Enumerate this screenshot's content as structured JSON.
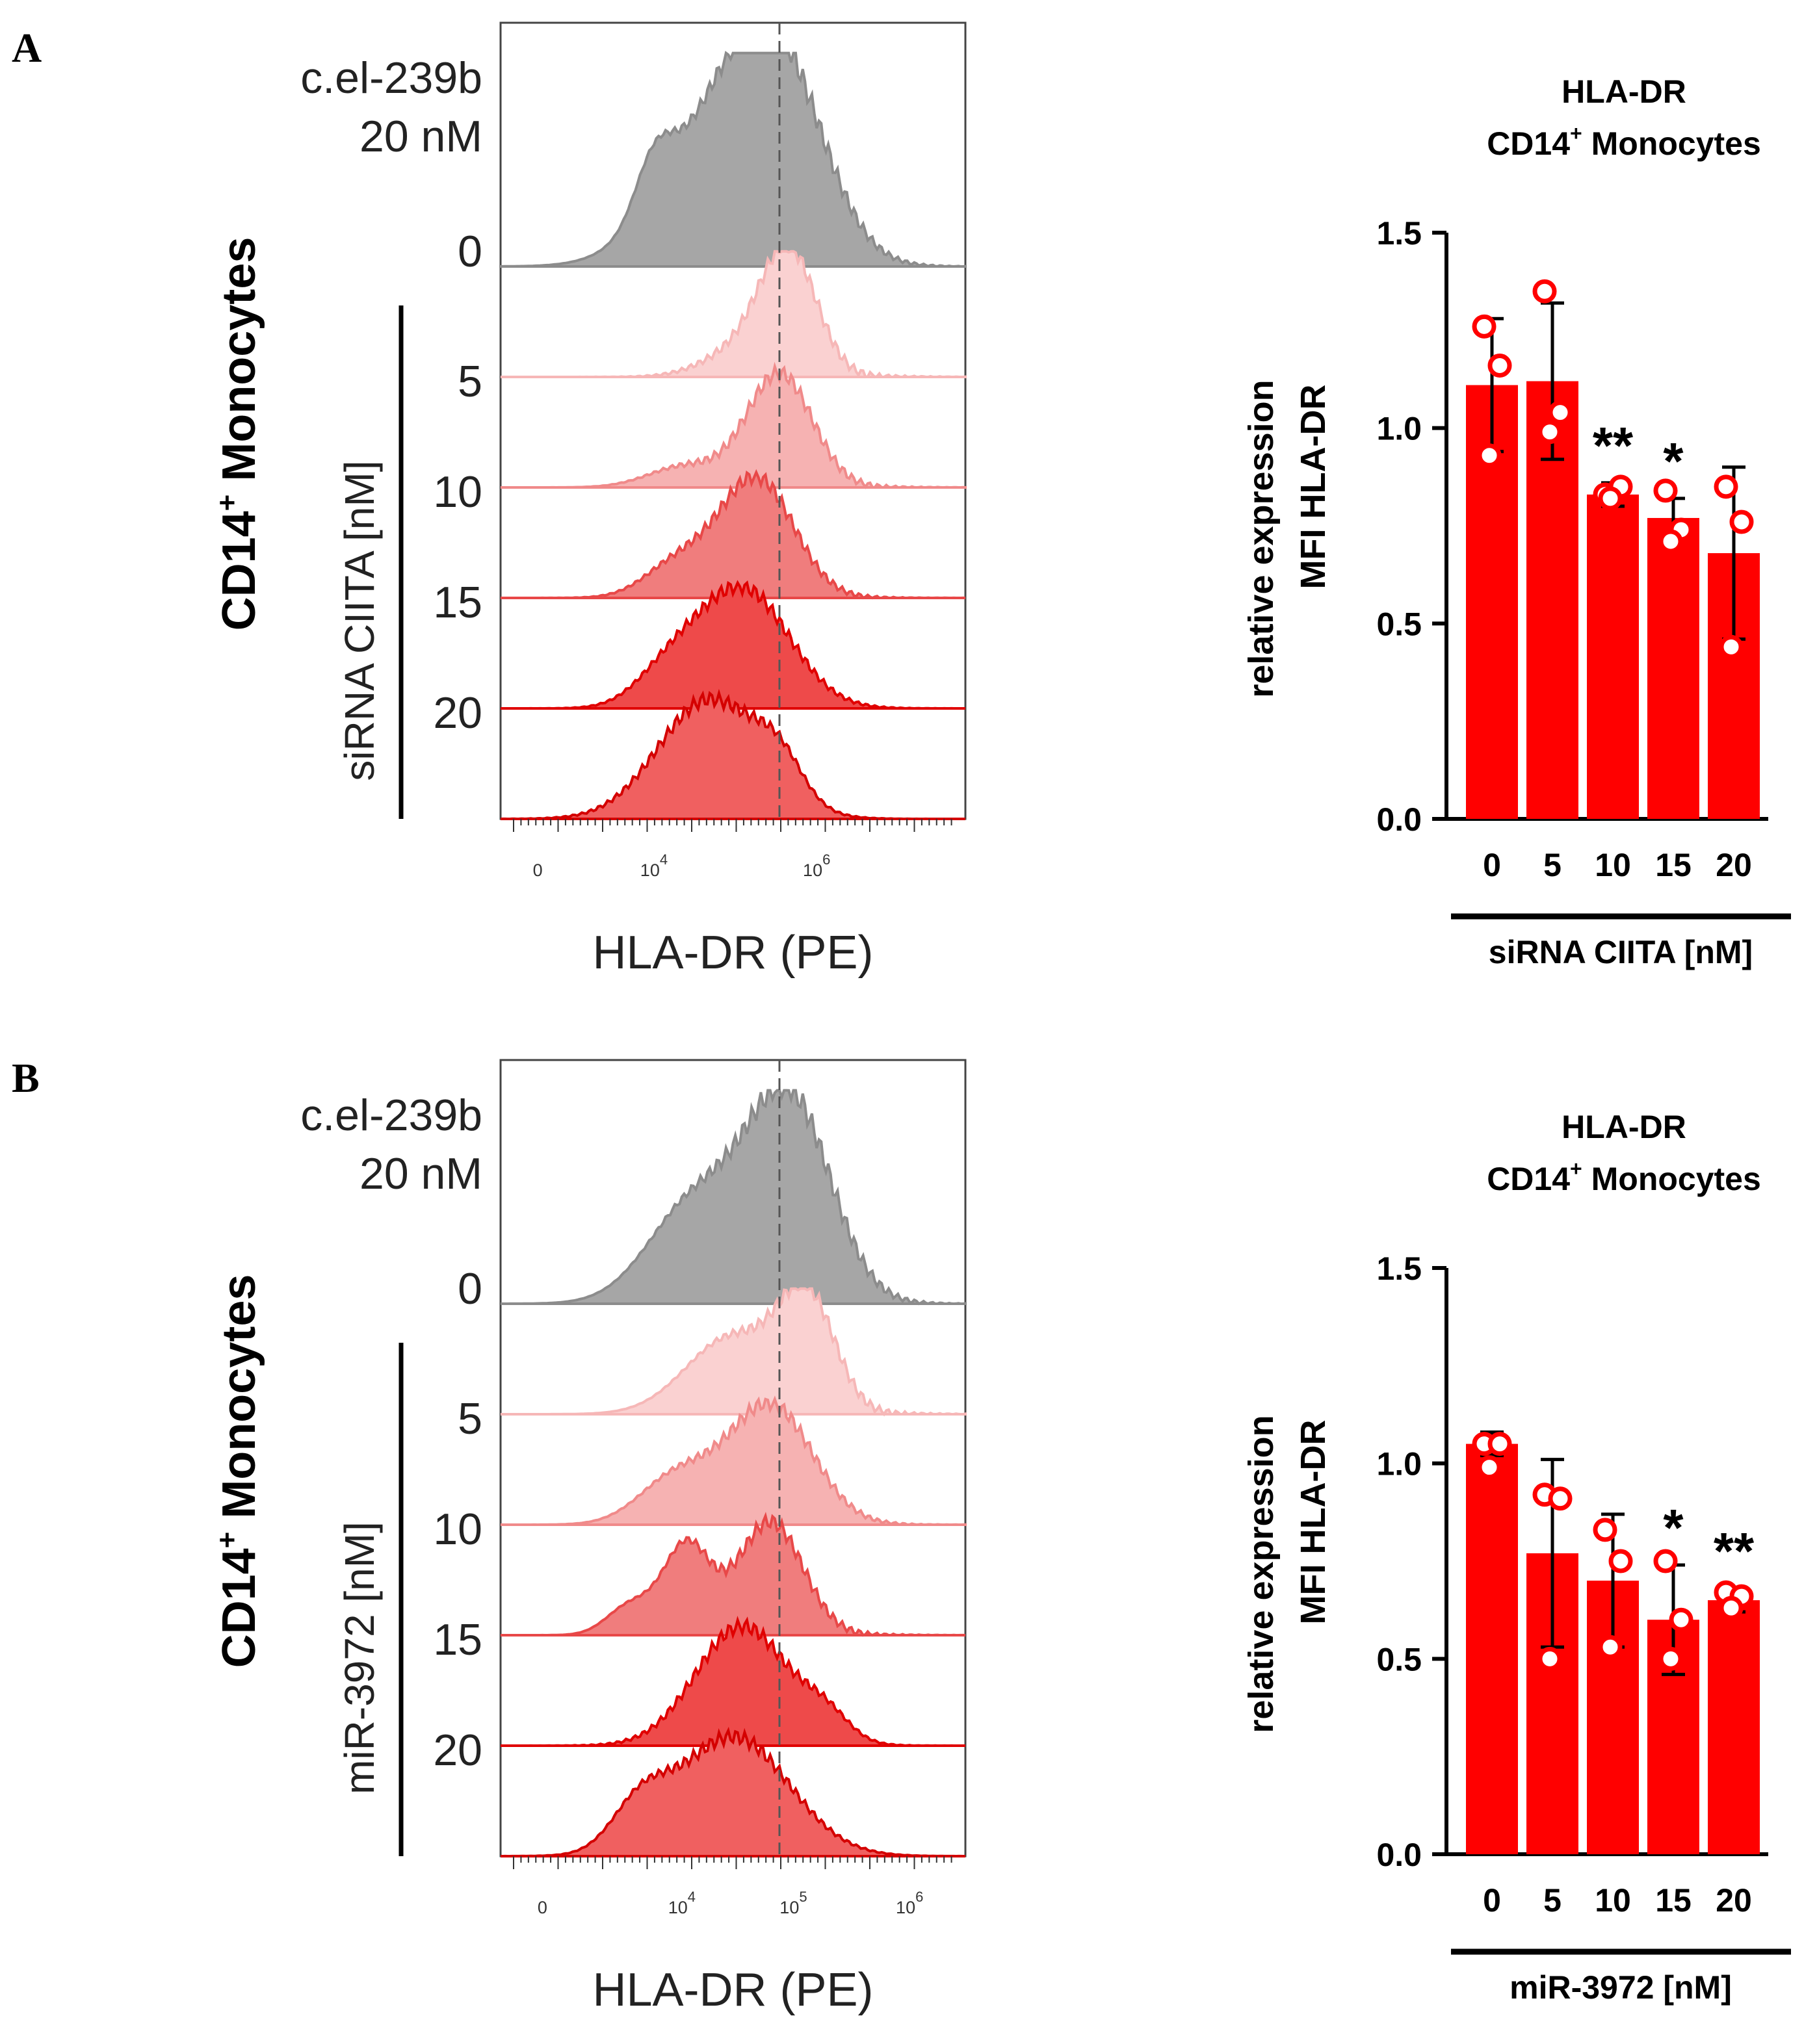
{
  "panels": [
    {
      "letter": "A",
      "facs": {
        "control_label_line1": "c.el-239b",
        "control_label_line2": "20 nM",
        "ylabel_main": "CD14",
        "ylabel_sup": "+",
        "ylabel_rest": " Monocytes",
        "treatment_label": "siRNA CIITA [nM]",
        "concentrations": [
          "0",
          "5",
          "10",
          "15",
          "20"
        ],
        "xtick_labels": [
          {
            "base": "0",
            "exp": "",
            "logpos": 0.08
          },
          {
            "base": "10",
            "exp": "4",
            "logpos": 0.33
          },
          {
            "base": "10",
            "exp": "6",
            "logpos": 0.68
          }
        ],
        "xlabel": "HLA-DR (PE)",
        "dashed_line_logpos": 0.6,
        "histograms": [
          {
            "name": "c.el-239b 20 nM",
            "color": "#8c8c8c",
            "fill": "#a6a6a6",
            "peaks": [
              [
                0.6,
                0.85,
                0.1
              ],
              [
                0.46,
                0.6,
                0.12
              ],
              [
                0.33,
                0.25,
                0.04
              ]
            ]
          },
          {
            "name": "0 nM",
            "color": "#f6b7b7",
            "fill": "#fad1d1",
            "peaks": [
              [
                0.62,
                1.0,
                0.06
              ],
              [
                0.52,
                0.22,
                0.08
              ]
            ]
          },
          {
            "name": "5 nM",
            "color": "#f08a8a",
            "fill": "#f6b2b2",
            "peaks": [
              [
                0.6,
                0.95,
                0.07
              ],
              [
                0.4,
                0.18,
                0.08
              ]
            ]
          },
          {
            "name": "10 nM",
            "color": "#e84848",
            "fill": "#f07d7d",
            "peaks": [
              [
                0.55,
                1.0,
                0.08
              ],
              [
                0.38,
                0.28,
                0.07
              ]
            ]
          },
          {
            "name": "15 nM",
            "color": "#e00000",
            "fill": "#ee4a4a",
            "peaks": [
              [
                0.52,
                1.0,
                0.1
              ],
              [
                0.36,
                0.25,
                0.07
              ]
            ]
          },
          {
            "name": "20 nM",
            "color": "#d40000",
            "fill": "#f06060",
            "peaks": [
              [
                0.45,
                1.0,
                0.11
              ],
              [
                0.6,
                0.3,
                0.05
              ]
            ]
          }
        ]
      },
      "chart_data": {
        "type": "bar",
        "title_line1": "HLA-DR",
        "title_line2_main": "CD14",
        "title_line2_sup": "+",
        "title_line2_rest": " Monocytes",
        "ylabel_line1": "relative expression",
        "ylabel_line2": "MFI HLA-DR",
        "xlabel": "siRNA CIITA [nM]",
        "categories": [
          "0",
          "5",
          "10",
          "15",
          "20"
        ],
        "values": [
          1.11,
          1.12,
          0.83,
          0.77,
          0.68
        ],
        "errors": [
          0.17,
          0.2,
          0.03,
          0.05,
          0.22
        ],
        "points": [
          [
            1.26,
            1.16,
            0.93
          ],
          [
            1.35,
            1.04,
            0.99
          ],
          [
            0.83,
            0.85,
            0.82
          ],
          [
            0.84,
            0.74,
            0.71
          ],
          [
            0.85,
            0.76,
            0.44
          ]
        ],
        "significance": [
          "",
          "",
          "**",
          "*",
          ""
        ],
        "ylim": [
          0,
          1.5
        ],
        "yticks": [
          "0.0",
          "0.5",
          "1.0",
          "1.5"
        ],
        "yticks_values": [
          0,
          0.5,
          1.0,
          1.5
        ]
      }
    },
    {
      "letter": "B",
      "facs": {
        "control_label_line1": "c.el-239b",
        "control_label_line2": "20 nM",
        "ylabel_main": "CD14",
        "ylabel_sup": "+",
        "ylabel_rest": " Monocytes",
        "treatment_label": "miR-3972 [nM]",
        "concentrations": [
          "0",
          "5",
          "10",
          "15",
          "20"
        ],
        "xtick_labels": [
          {
            "base": "0",
            "exp": "",
            "logpos": 0.09
          },
          {
            "base": "10",
            "exp": "4",
            "logpos": 0.39
          },
          {
            "base": "10",
            "exp": "5",
            "logpos": 0.63
          },
          {
            "base": "10",
            "exp": "6",
            "logpos": 0.88
          }
        ],
        "xlabel": "HLA-DR (PE)",
        "dashed_line_logpos": 0.6,
        "histograms": [
          {
            "name": "c.el-239b 20 nM",
            "color": "#8c8c8c",
            "fill": "#a6a6a6",
            "peaks": [
              [
                0.62,
                1.0,
                0.09
              ],
              [
                0.42,
                0.5,
                0.1
              ]
            ]
          },
          {
            "name": "0 nM",
            "color": "#f6b7b7",
            "fill": "#fad1d1",
            "peaks": [
              [
                0.66,
                0.9,
                0.06
              ],
              [
                0.5,
                0.65,
                0.1
              ]
            ]
          },
          {
            "name": "5 nM",
            "color": "#f08a8a",
            "fill": "#f6b2b2",
            "peaks": [
              [
                0.58,
                1.0,
                0.09
              ],
              [
                0.38,
                0.4,
                0.08
              ]
            ]
          },
          {
            "name": "10 nM",
            "color": "#e84848",
            "fill": "#f07d7d",
            "peaks": [
              [
                0.58,
                0.95,
                0.07
              ],
              [
                0.4,
                0.75,
                0.05
              ],
              [
                0.28,
                0.25,
                0.05
              ]
            ]
          },
          {
            "name": "15 nM",
            "color": "#e00000",
            "fill": "#ee4a4a",
            "peaks": [
              [
                0.52,
                1.0,
                0.1
              ],
              [
                0.7,
                0.2,
                0.05
              ]
            ]
          },
          {
            "name": "20 nM",
            "color": "#d40000",
            "fill": "#f06060",
            "peaks": [
              [
                0.5,
                1.0,
                0.12
              ],
              [
                0.3,
                0.35,
                0.06
              ]
            ]
          }
        ]
      },
      "chart_data": {
        "type": "bar",
        "title_line1": "HLA-DR",
        "title_line2_main": "CD14",
        "title_line2_sup": "+",
        "title_line2_rest": " Monocytes",
        "ylabel_line1": "relative expression",
        "ylabel_line2": "MFI HLA-DR",
        "xlabel": "miR-3972 [nM]",
        "categories": [
          "0",
          "5",
          "10",
          "15",
          "20"
        ],
        "values": [
          1.05,
          0.77,
          0.7,
          0.6,
          0.65
        ],
        "errors": [
          0.03,
          0.24,
          0.17,
          0.14,
          0.03
        ],
        "points": [
          [
            1.05,
            1.05,
            0.99
          ],
          [
            0.92,
            0.91,
            0.5
          ],
          [
            0.83,
            0.75,
            0.53
          ],
          [
            0.75,
            0.6,
            0.5
          ],
          [
            0.67,
            0.66,
            0.63
          ]
        ],
        "significance": [
          "",
          "",
          "",
          "*",
          "**"
        ],
        "ylim": [
          0,
          1.5
        ],
        "yticks": [
          "0.0",
          "0.5",
          "1.0",
          "1.5"
        ],
        "yticks_values": [
          0,
          0.5,
          1.0,
          1.5
        ]
      }
    }
  ]
}
